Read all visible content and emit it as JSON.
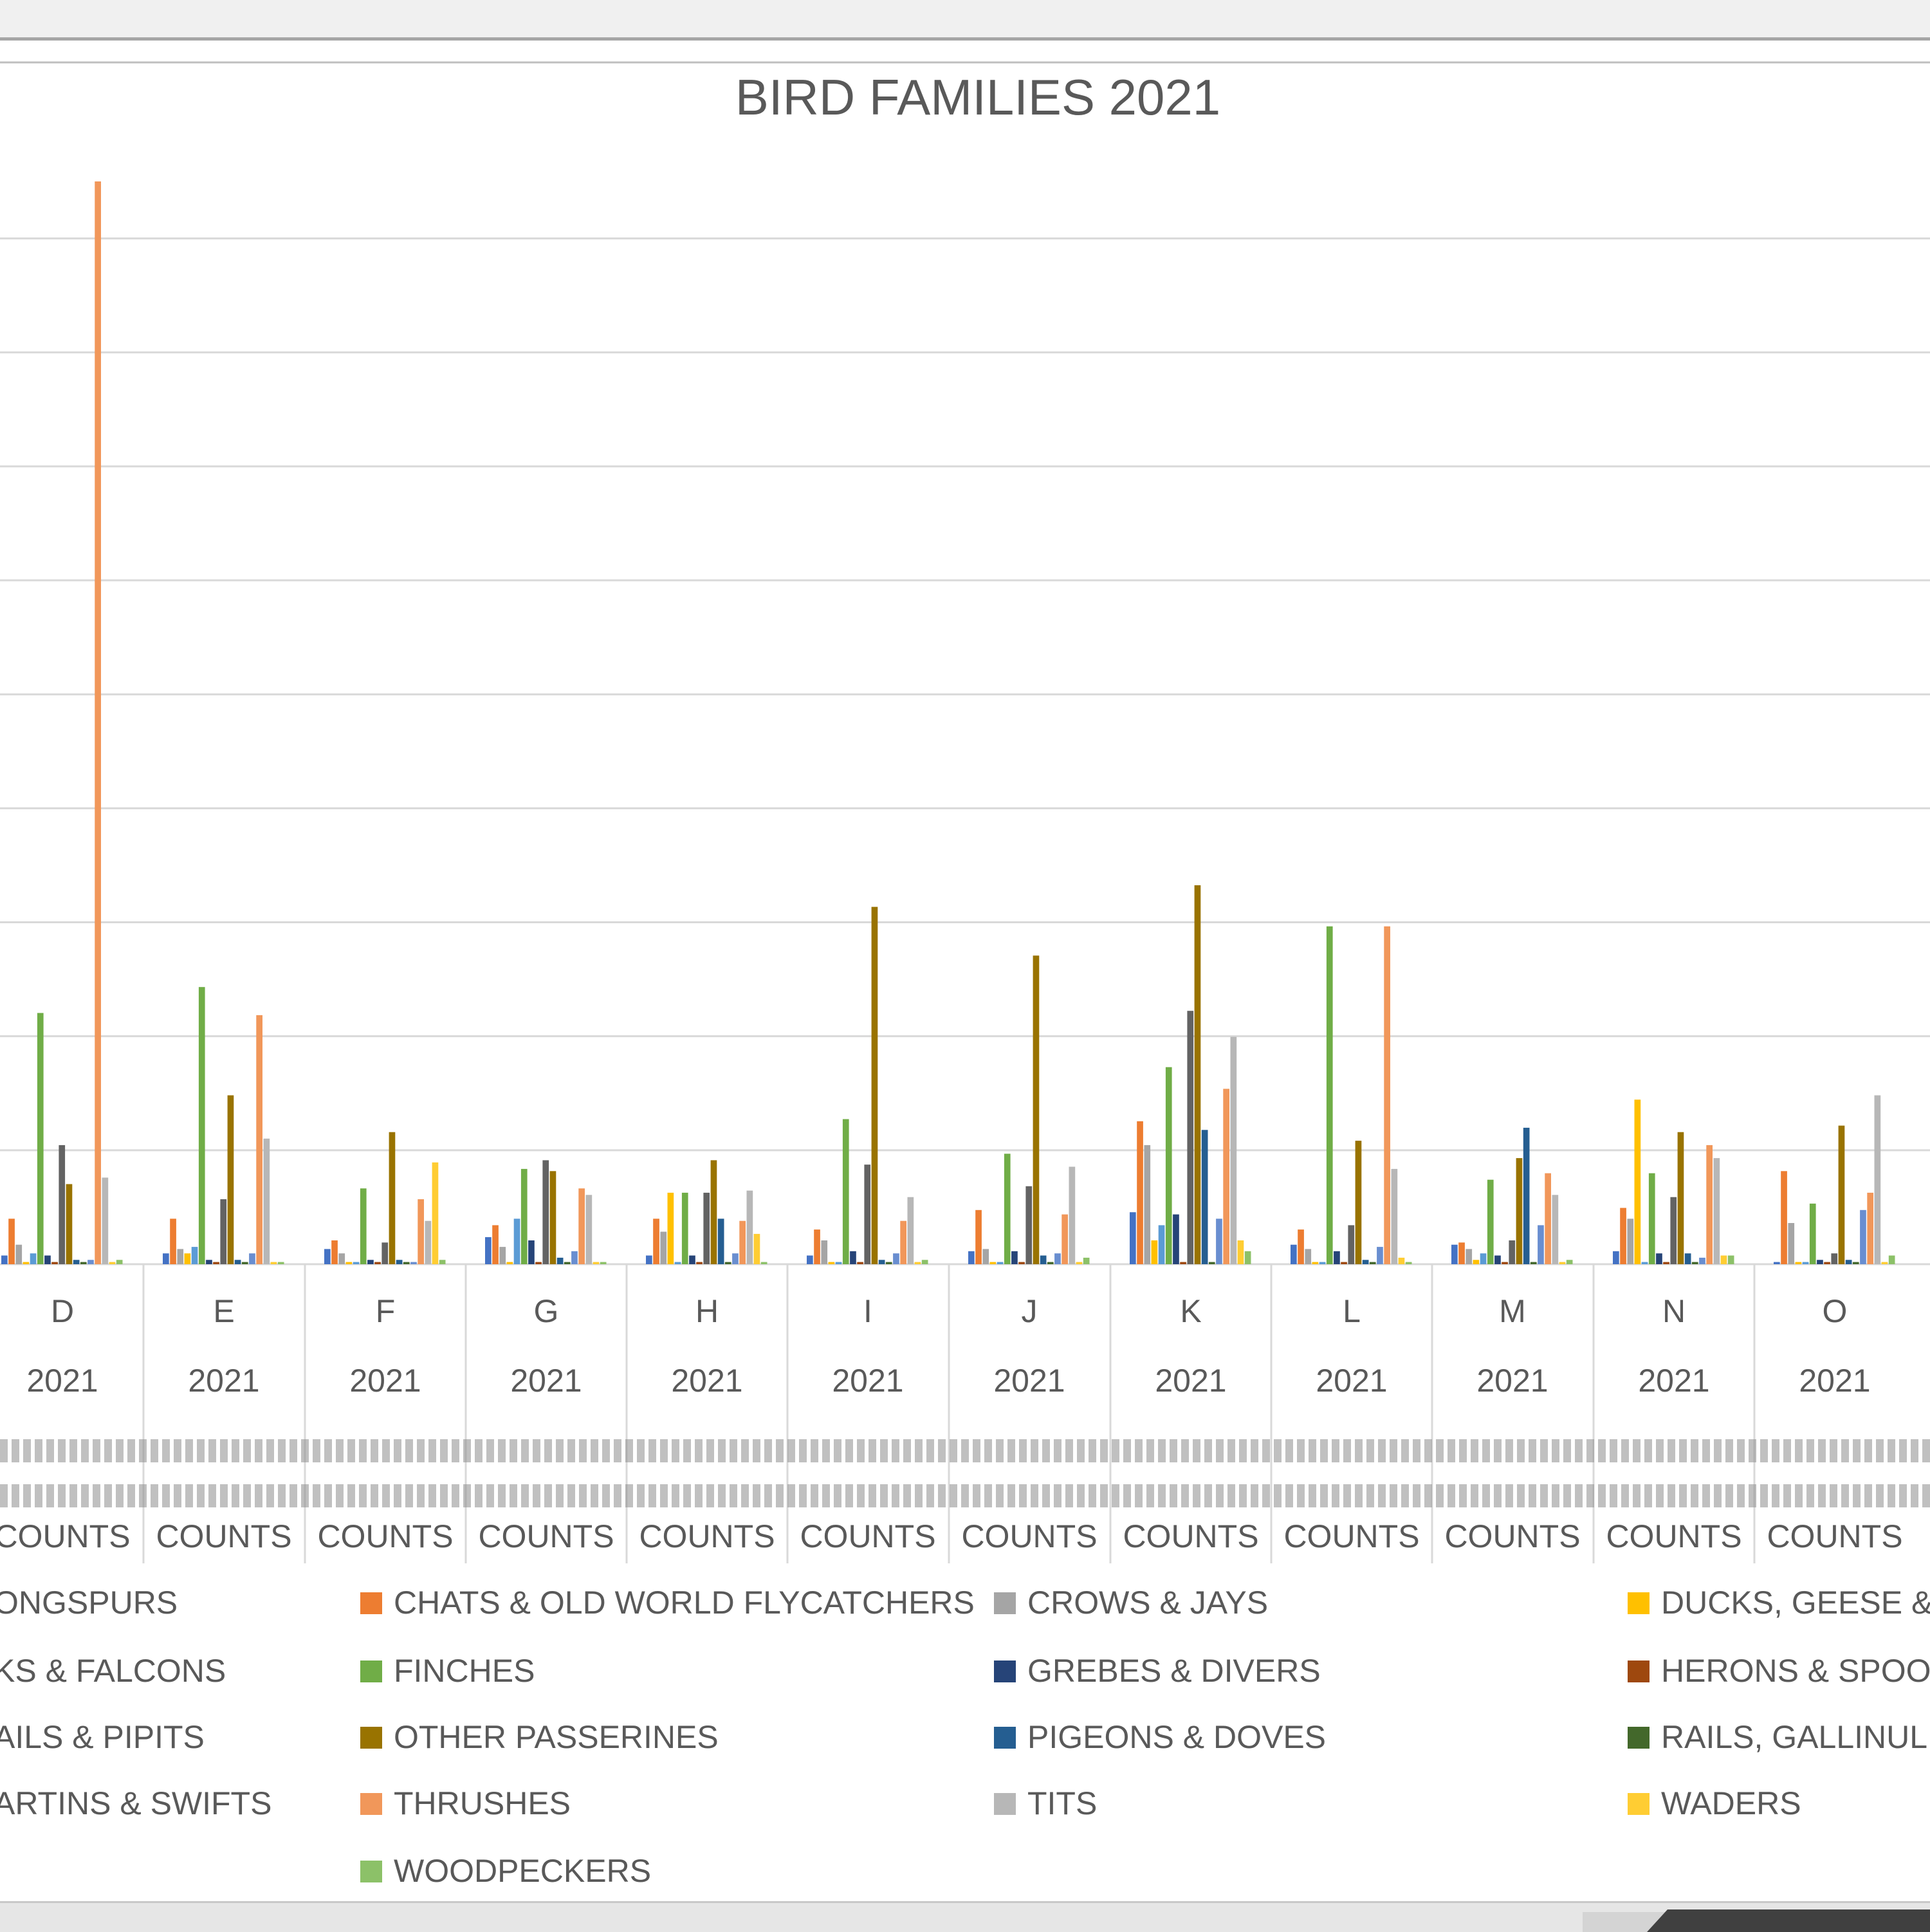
{
  "chart_data": {
    "type": "bar",
    "title": "BIRD FAMILIES 2021",
    "categories": [
      "D",
      "E",
      "F",
      "G",
      "H",
      "I",
      "J",
      "K",
      "L",
      "M",
      "N",
      "O"
    ],
    "category_year": "2021",
    "category_sub_label": "COUNTS",
    "ylim": [
      0,
      1000
    ],
    "grid": true,
    "legend_placement": "bottom",
    "legend": [
      "ONGSPURS",
      "CHATS & OLD WORLD FLYCATCHERS",
      "CROWS & JAYS",
      "DUCKS, GEESE &",
      "KS & FALCONS",
      "FINCHES",
      "GREBES & DIVERS",
      "HERONS & SPOO",
      "AILS & PIPITS",
      "OTHER PASSERINES",
      "PIGEONS & DOVES",
      "RAILS, GALLINUL",
      "ARTINS & SWIFTS",
      "THRUSHES",
      "TITS",
      "WADERS",
      "WOODPECKERS"
    ],
    "series": [
      {
        "values": [
          8,
          10,
          14,
          25,
          8,
          8,
          12,
          48,
          18,
          18,
          12,
          2
        ]
      },
      {
        "values": [
          42,
          42,
          22,
          36,
          42,
          32,
          50,
          132,
          32,
          20,
          52,
          86
        ]
      },
      {
        "values": [
          18,
          14,
          10,
          16,
          30,
          22,
          14,
          110,
          14,
          14,
          42,
          38
        ]
      },
      {
        "values": [
          2,
          10,
          2,
          2,
          66,
          2,
          2,
          22,
          2,
          4,
          152,
          2
        ]
      },
      {
        "values": [
          10,
          16,
          2,
          42,
          2,
          2,
          2,
          36,
          2,
          10,
          2,
          2
        ]
      },
      {
        "values": [
          232,
          256,
          70,
          88,
          66,
          134,
          102,
          182,
          312,
          78,
          84,
          56
        ]
      },
      {
        "values": [
          8,
          4,
          4,
          22,
          8,
          12,
          12,
          46,
          12,
          8,
          10,
          4
        ]
      },
      {
        "values": [
          2,
          2,
          2,
          2,
          2,
          2,
          2,
          2,
          2,
          2,
          2,
          2
        ]
      },
      {
        "values": [
          110,
          60,
          20,
          96,
          66,
          92,
          72,
          234,
          36,
          22,
          62,
          10
        ]
      },
      {
        "values": [
          74,
          156,
          122,
          86,
          96,
          330,
          285,
          350,
          114,
          98,
          122,
          128
        ]
      },
      {
        "values": [
          4,
          4,
          4,
          6,
          42,
          4,
          8,
          124,
          4,
          126,
          10,
          4
        ]
      },
      {
        "values": [
          2,
          2,
          2,
          2,
          2,
          2,
          2,
          2,
          2,
          2,
          2,
          2
        ]
      },
      {
        "values": [
          4,
          10,
          2,
          12,
          10,
          10,
          10,
          42,
          16,
          36,
          6,
          50
        ]
      },
      {
        "values": [
          1000,
          230,
          60,
          70,
          40,
          40,
          46,
          162,
          312,
          84,
          110,
          66
        ]
      },
      {
        "values": [
          80,
          116,
          40,
          64,
          68,
          62,
          90,
          210,
          88,
          64,
          98,
          156
        ]
      },
      {
        "values": [
          2,
          2,
          94,
          2,
          28,
          2,
          2,
          22,
          6,
          2,
          8,
          2
        ]
      },
      {
        "values": [
          4,
          2,
          4,
          2,
          2,
          4,
          6,
          12,
          2,
          4,
          8,
          8
        ]
      }
    ]
  },
  "colors": [
    "#4472c4",
    "#ed7d31",
    "#a5a5a5",
    "#ffc000",
    "#5b9bd5",
    "#70ad47",
    "#264478",
    "#9e480e",
    "#636363",
    "#997300",
    "#255e91",
    "#43682b",
    "#698ed0",
    "#f1975a",
    "#b7b7b7",
    "#ffcd33",
    "#8cc168"
  ]
}
